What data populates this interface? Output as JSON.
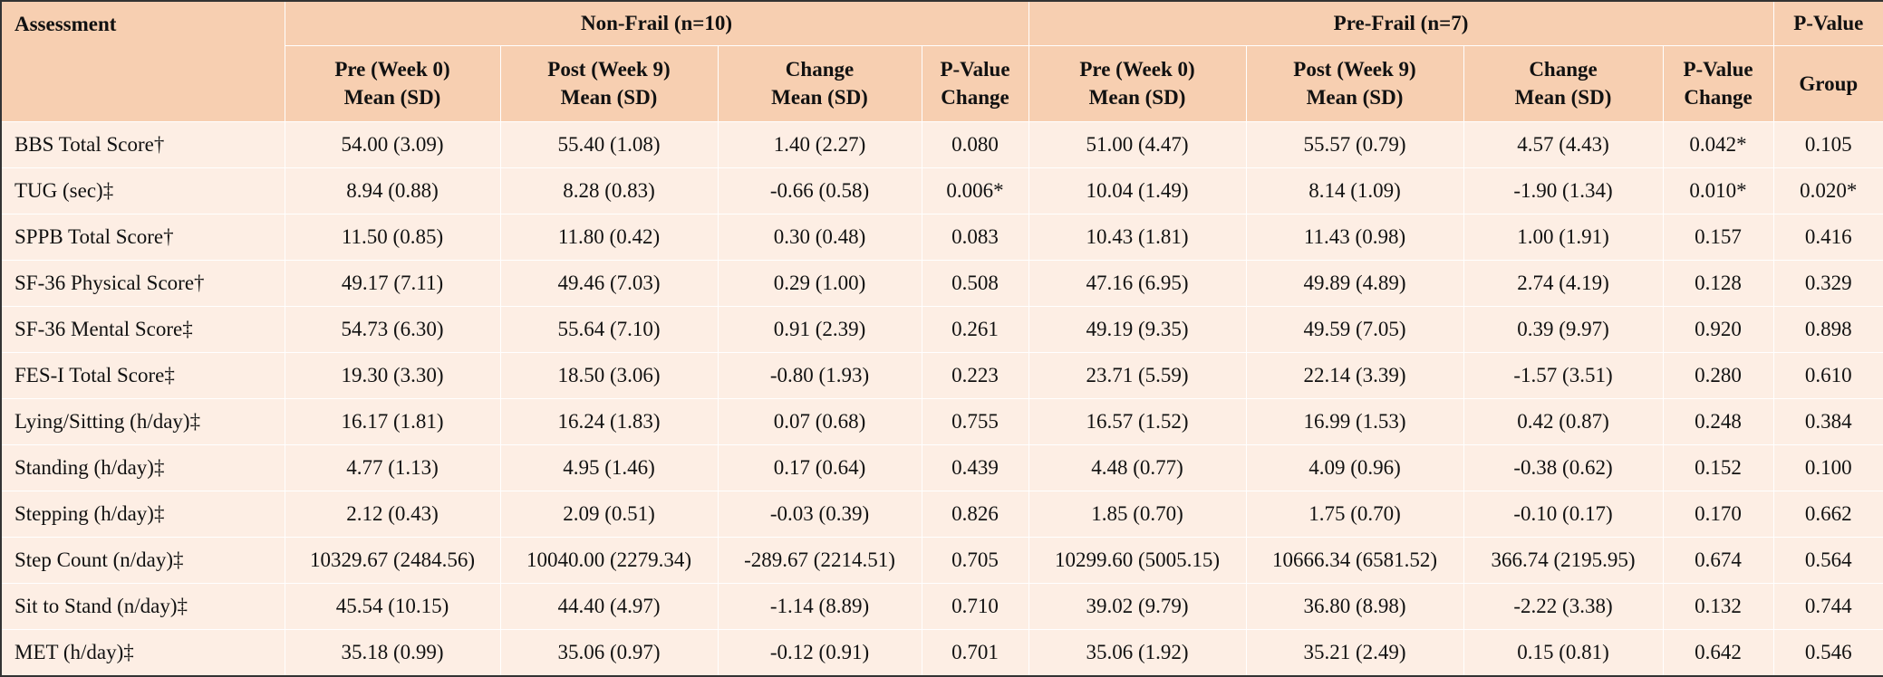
{
  "table": {
    "top_headers": {
      "assessment": "Assessment",
      "non_frail": "Non-Frail (n=10)",
      "pre_frail": "Pre-Frail (n=7)",
      "p_value": "P-Value"
    },
    "sub_headers": {
      "non_frail": [
        {
          "line1": "Pre (Week 0)",
          "line2": "Mean (SD)"
        },
        {
          "line1": "Post (Week 9)",
          "line2": "Mean (SD)"
        },
        {
          "line1": "Change",
          "line2": "Mean (SD)"
        },
        {
          "line1": "P-Value",
          "line2": "Change"
        }
      ],
      "pre_frail": [
        {
          "line1": "Pre (Week 0)",
          "line2": "Mean (SD)"
        },
        {
          "line1": "Post (Week 9)",
          "line2": "Mean (SD)"
        },
        {
          "line1": "Change",
          "line2": "Mean (SD)"
        },
        {
          "line1": "P-Value",
          "line2": "Change"
        }
      ],
      "group": "Group"
    },
    "rows": [
      {
        "label": "BBS Total Score†",
        "cells": [
          "54.00 (3.09)",
          "55.40 (1.08)",
          "1.40 (2.27)",
          "0.080",
          "51.00 (4.47)",
          "55.57 (0.79)",
          "4.57 (4.43)",
          "0.042*",
          "0.105"
        ]
      },
      {
        "label": "TUG (sec)‡",
        "cells": [
          "8.94 (0.88)",
          "8.28 (0.83)",
          "-0.66 (0.58)",
          "0.006*",
          "10.04 (1.49)",
          "8.14 (1.09)",
          "-1.90 (1.34)",
          "0.010*",
          "0.020*"
        ]
      },
      {
        "label": "SPPB Total Score†",
        "cells": [
          "11.50 (0.85)",
          "11.80 (0.42)",
          "0.30 (0.48)",
          "0.083",
          "10.43 (1.81)",
          "11.43 (0.98)",
          "1.00 (1.91)",
          "0.157",
          "0.416"
        ]
      },
      {
        "label": "SF-36 Physical Score†",
        "cells": [
          "49.17 (7.11)",
          "49.46 (7.03)",
          "0.29 (1.00)",
          "0.508",
          "47.16 (6.95)",
          "49.89 (4.89)",
          "2.74 (4.19)",
          "0.128",
          "0.329"
        ]
      },
      {
        "label": "SF-36 Mental Score‡",
        "cells": [
          "54.73 (6.30)",
          "55.64 (7.10)",
          "0.91 (2.39)",
          "0.261",
          "49.19 (9.35)",
          "49.59 (7.05)",
          "0.39 (9.97)",
          "0.920",
          "0.898"
        ]
      },
      {
        "label": "FES-I Total Score‡",
        "cells": [
          "19.30 (3.30)",
          "18.50 (3.06)",
          "-0.80 (1.93)",
          "0.223",
          "23.71 (5.59)",
          "22.14 (3.39)",
          "-1.57 (3.51)",
          "0.280",
          "0.610"
        ]
      },
      {
        "label": "Lying/Sitting (h/day)‡",
        "cells": [
          "16.17 (1.81)",
          "16.24 (1.83)",
          "0.07 (0.68)",
          "0.755",
          "16.57 (1.52)",
          "16.99 (1.53)",
          "0.42 (0.87)",
          "0.248",
          "0.384"
        ]
      },
      {
        "label": "Standing (h/day)‡",
        "cells": [
          "4.77 (1.13)",
          "4.95 (1.46)",
          "0.17 (0.64)",
          "0.439",
          "4.48 (0.77)",
          "4.09 (0.96)",
          "-0.38 (0.62)",
          "0.152",
          "0.100"
        ]
      },
      {
        "label": "Stepping (h/day)‡",
        "cells": [
          "2.12 (0.43)",
          "2.09 (0.51)",
          "-0.03 (0.39)",
          "0.826",
          "1.85 (0.70)",
          "1.75 (0.70)",
          "-0.10 (0.17)",
          "0.170",
          "0.662"
        ]
      },
      {
        "label": "Step Count (n/day)‡",
        "cells": [
          "10329.67 (2484.56)",
          "10040.00 (2279.34)",
          "-289.67 (2214.51)",
          "0.705",
          "10299.60 (5005.15)",
          "10666.34 (6581.52)",
          "366.74 (2195.95)",
          "0.674",
          "0.564"
        ]
      },
      {
        "label": "Sit to Stand (n/day)‡",
        "cells": [
          "45.54 (10.15)",
          "44.40 (4.97)",
          "-1.14 (8.89)",
          "0.710",
          "39.02 (9.79)",
          "36.80 (8.98)",
          "-2.22 (3.38)",
          "0.132",
          "0.744"
        ]
      },
      {
        "label": "MET (h/day)‡",
        "cells": [
          "35.18 (0.99)",
          "35.06 (0.97)",
          "-0.12 (0.91)",
          "0.701",
          "35.06 (1.92)",
          "35.21 (2.49)",
          "0.15 (0.81)",
          "0.642",
          "0.546"
        ]
      }
    ]
  }
}
